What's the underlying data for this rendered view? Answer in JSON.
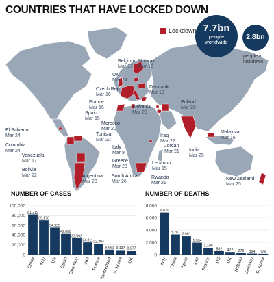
{
  "header": {
    "title": "COUNTRIES THAT HAVE LOCKED DOWN",
    "legend_label": "Lockdown",
    "colors": {
      "lockdown": "#b01e2a",
      "land": "#9aa7b6",
      "bar": "#163a5f"
    }
  },
  "stats": {
    "people_value": "7.7bn",
    "people_line1": "people",
    "people_line2": "worldwide",
    "lockdown_value": "2.8bn",
    "lockdown_line1": "people in",
    "lockdown_line2": "lockdown"
  },
  "countries": [
    {
      "name": "Belgium",
      "date": "Mar 17"
    },
    {
      "name": "Norway",
      "date": "Mar 12"
    },
    {
      "name": "UK",
      "date": "Mar 24"
    },
    {
      "name": "Czech Rep",
      "date": "Mar 16"
    },
    {
      "name": "Denmark",
      "date": "Mar 13"
    },
    {
      "name": "France",
      "date": "Mar 16"
    },
    {
      "name": "Poland",
      "date": "Mar 20"
    },
    {
      "name": "Slovenia",
      "date": "Mar 20"
    },
    {
      "name": "Spain",
      "date": "Mar 15"
    },
    {
      "name": "Morocco",
      "date": "Mar 20"
    },
    {
      "name": "El Salvador",
      "date": "Mar 24"
    },
    {
      "name": "Malaysia",
      "date": "Mar 16"
    },
    {
      "name": "Tunisia",
      "date": "Mar 22"
    },
    {
      "name": "Iraq",
      "date": "Mar 22"
    },
    {
      "name": "Columbia",
      "date": "Mar 24"
    },
    {
      "name": "Jordan",
      "date": "Mar 21"
    },
    {
      "name": "Italy",
      "date": "Mar 9"
    },
    {
      "name": "India",
      "date": "Mar 25"
    },
    {
      "name": "Venezuela",
      "date": "Mar 17"
    },
    {
      "name": "Greece",
      "date": "Mar 23"
    },
    {
      "name": "Lebanon",
      "date": "Mar 15"
    },
    {
      "name": "Bolivia",
      "date": "Mar 22"
    },
    {
      "name": "South Africa",
      "date": "Mar 26"
    },
    {
      "name": "Rwanda",
      "date": "Mar 21"
    },
    {
      "name": "Argentina",
      "date": "Mar 20"
    },
    {
      "name": "New Zealand",
      "date": "Mar 25"
    }
  ],
  "chart_data": [
    {
      "type": "bar",
      "title": "NUMBER OF CASES",
      "categories": [
        "China",
        "Italy",
        "US",
        "Spain",
        "Germany",
        "Iran",
        "France",
        "Switzerland",
        "S. Korea",
        "UK"
      ],
      "values": [
        81219,
        69176,
        54935,
        42058,
        33593,
        24811,
        22304,
        9991,
        9137,
        8077
      ],
      "value_labels": [
        "81,219",
        "69,176",
        "54,935",
        "42,058",
        "33,593",
        "24,811",
        "22,304",
        "9,991",
        "9,137",
        "8,077"
      ],
      "ylim": [
        0,
        100000
      ],
      "yticks": [
        0,
        20000,
        40000,
        60000,
        80000,
        100000
      ],
      "ytick_labels": [
        "0",
        "20,000",
        "40,000",
        "60,000",
        "80,000",
        "100,000"
      ],
      "color": "#163a5f"
    },
    {
      "type": "bar",
      "title": "NUMBER OF DEATHS",
      "categories": [
        "Italy",
        "China",
        "Spain",
        "Iran",
        "France",
        "US",
        "UK",
        "Holland",
        "Germany",
        "S. Korea"
      ],
      "values": [
        6820,
        3281,
        2991,
        1934,
        1100,
        582,
        422,
        276,
        164,
        126
      ],
      "value_labels": [
        "6,820",
        "3,281",
        "2,991",
        "1,934",
        "1,100",
        "582",
        "422",
        "276",
        "164",
        "126"
      ],
      "ylim": [
        0,
        8000
      ],
      "yticks": [
        0,
        2000,
        4000,
        6000,
        8000
      ],
      "ytick_labels": [
        "0",
        "2,000",
        "4,000",
        "6,000",
        "8,000"
      ],
      "color": "#163a5f"
    }
  ]
}
